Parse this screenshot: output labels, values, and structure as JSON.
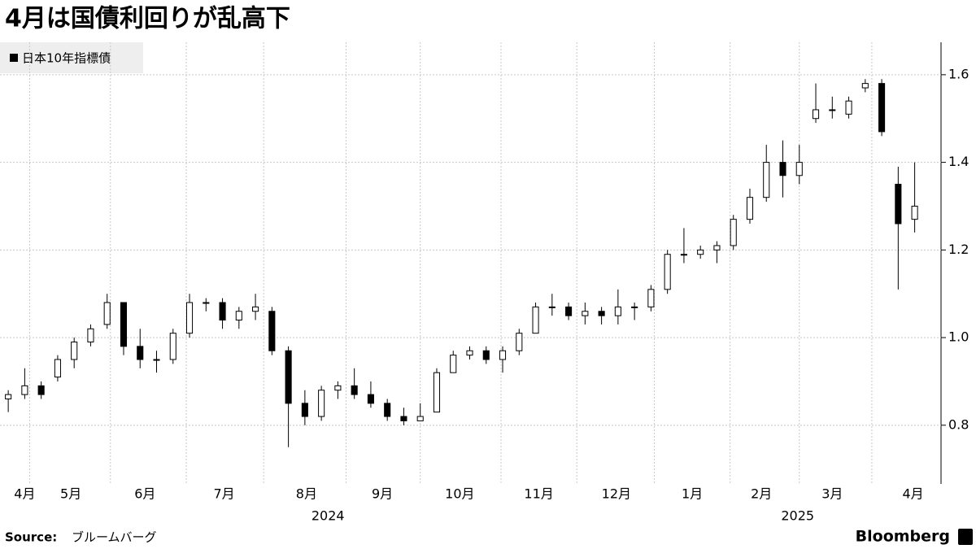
{
  "chart_data": {
    "type": "candlestick",
    "title": "4月は国債利回りが乱高下",
    "legend": "日本10年指標債",
    "color_up": "#ffffff",
    "color_down": "#000000",
    "edge_color": "#000000",
    "categories": [
      null,
      null,
      null,
      null,
      null,
      null,
      null,
      null,
      null,
      null,
      null,
      null,
      null,
      null,
      null,
      null,
      null,
      null,
      null,
      null,
      null,
      null,
      null,
      null,
      null,
      null,
      null,
      null,
      null,
      null,
      null,
      null,
      null,
      null,
      null,
      null,
      null,
      null,
      null,
      null,
      null,
      null,
      null,
      null,
      null,
      null,
      null,
      null,
      null,
      null,
      null,
      null,
      null,
      null,
      null,
      null
    ],
    "open": [
      0.86,
      0.87,
      0.89,
      0.91,
      0.95,
      0.99,
      1.03,
      1.08,
      0.98,
      0.95,
      0.95,
      1.01,
      1.08,
      1.08,
      1.04,
      1.06,
      1.06,
      0.97,
      0.85,
      0.82,
      0.88,
      0.89,
      0.87,
      0.85,
      0.82,
      0.81,
      0.83,
      0.92,
      0.96,
      0.97,
      0.95,
      0.97,
      1.01,
      1.07,
      1.07,
      1.05,
      1.06,
      1.05,
      1.07,
      1.07,
      1.11,
      1.19,
      1.19,
      1.2,
      1.21,
      1.27,
      1.32,
      1.4,
      1.37,
      1.5,
      1.52,
      1.51,
      1.57,
      1.58,
      1.35,
      1.27
    ],
    "high": [
      0.88,
      0.93,
      0.9,
      0.96,
      1.0,
      1.03,
      1.1,
      1.08,
      1.02,
      0.97,
      1.02,
      1.1,
      1.09,
      1.09,
      1.07,
      1.1,
      1.07,
      0.98,
      0.88,
      0.89,
      0.9,
      0.93,
      0.9,
      0.86,
      0.84,
      0.85,
      0.93,
      0.97,
      0.98,
      0.98,
      0.98,
      1.02,
      1.08,
      1.1,
      1.08,
      1.08,
      1.07,
      1.11,
      1.08,
      1.12,
      1.2,
      1.25,
      1.21,
      1.22,
      1.28,
      1.34,
      1.44,
      1.45,
      1.44,
      1.58,
      1.55,
      1.55,
      1.59,
      1.59,
      1.39,
      1.4
    ],
    "low": [
      0.83,
      0.86,
      0.86,
      0.9,
      0.93,
      0.98,
      1.02,
      0.96,
      0.93,
      0.92,
      0.94,
      1.0,
      1.06,
      1.02,
      1.02,
      1.04,
      0.96,
      0.75,
      0.8,
      0.81,
      0.86,
      0.86,
      0.84,
      0.81,
      0.8,
      0.81,
      0.83,
      0.92,
      0.95,
      0.94,
      0.92,
      0.96,
      1.01,
      1.05,
      1.04,
      1.03,
      1.03,
      1.03,
      1.04,
      1.06,
      1.1,
      1.17,
      1.18,
      1.17,
      1.2,
      1.26,
      1.31,
      1.32,
      1.35,
      1.49,
      1.5,
      1.5,
      1.56,
      1.46,
      1.11,
      1.24
    ],
    "close": [
      0.87,
      0.89,
      0.87,
      0.95,
      0.99,
      1.02,
      1.08,
      0.98,
      0.95,
      0.95,
      1.01,
      1.08,
      1.08,
      1.04,
      1.06,
      1.07,
      0.97,
      0.85,
      0.82,
      0.88,
      0.89,
      0.87,
      0.85,
      0.82,
      0.81,
      0.82,
      0.92,
      0.96,
      0.97,
      0.95,
      0.97,
      1.01,
      1.07,
      1.07,
      1.05,
      1.06,
      1.05,
      1.07,
      1.07,
      1.11,
      1.19,
      1.19,
      1.2,
      1.21,
      1.27,
      1.32,
      1.4,
      1.37,
      1.4,
      1.52,
      1.52,
      1.54,
      1.58,
      1.47,
      1.26,
      1.3
    ],
    "xlim": [
      -0.5,
      56.5
    ],
    "xticks": [
      {
        "value": 1.0,
        "label": "4月"
      },
      {
        "value": 3.8,
        "label": "5月"
      },
      {
        "value": 8.3,
        "label": "6月"
      },
      {
        "value": 13.1,
        "label": "7月"
      },
      {
        "value": 18.1,
        "label": "8月"
      },
      {
        "value": 22.7,
        "label": "9月"
      },
      {
        "value": 27.4,
        "label": "10月"
      },
      {
        "value": 32.2,
        "label": "11月"
      },
      {
        "value": 36.9,
        "label": "12月"
      },
      {
        "value": 41.5,
        "label": "1月"
      },
      {
        "value": 45.7,
        "label": "2月"
      },
      {
        "value": 50.0,
        "label": "3月"
      },
      {
        "value": 54.9,
        "label": "4月"
      }
    ],
    "year_ticks": [
      {
        "value": 19.4,
        "label": "2024"
      },
      {
        "value": 47.9,
        "label": "2025"
      }
    ],
    "xgrid": [
      1.3,
      6.2,
      10.8,
      15.5,
      20.5,
      25.0,
      29.9,
      34.5,
      39.2,
      43.8,
      48.0,
      52.4
    ],
    "ylim": [
      0.666,
      1.674
    ],
    "yticks": [
      0.8,
      {
        "value": 1.0,
        "label": "1.0"
      },
      1.2,
      1.4,
      1.6
    ],
    "grid": true,
    "source_label": "Source:",
    "source": "ブルームバーグ",
    "brand": "Bloomberg"
  }
}
